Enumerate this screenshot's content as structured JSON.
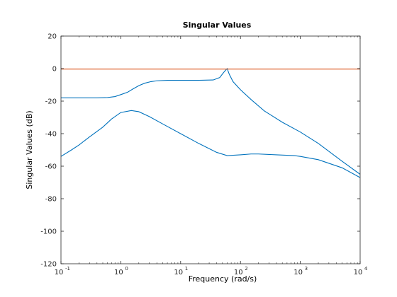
{
  "chart_data": {
    "type": "line",
    "title": "Singular Values",
    "xlabel": "Frequency (rad/s)",
    "ylabel": "Singular Values (dB)",
    "x_scale": "log",
    "xlim": [
      0.1,
      10000
    ],
    "ylim": [
      -120,
      20
    ],
    "grid": false,
    "x_ticks": [
      {
        "base": "10",
        "exp": "-1"
      },
      {
        "base": "10",
        "exp": "0"
      },
      {
        "base": "10",
        "exp": "1"
      },
      {
        "base": "10",
        "exp": "2"
      },
      {
        "base": "10",
        "exp": "3"
      },
      {
        "base": "10",
        "exp": "4"
      }
    ],
    "y_ticks": [
      "20",
      "0",
      "-20",
      "-40",
      "-60",
      "-80",
      "-100",
      "-120"
    ],
    "series": [
      {
        "color": "#0072bd",
        "x": [
          0.1,
          0.2,
          0.4,
          0.6,
          0.8,
          1.0,
          1.3,
          1.6,
          2.0,
          2.5,
          3.2,
          4,
          6,
          10,
          20,
          35,
          45,
          52,
          58,
          60,
          65,
          75,
          100,
          150,
          250,
          500,
          1000,
          2000,
          5000,
          10000
        ],
        "y": [
          -18,
          -18,
          -18,
          -17.8,
          -17.2,
          -16,
          -14.5,
          -12.5,
          -10.5,
          -9,
          -8,
          -7.5,
          -7.2,
          -7.2,
          -7.2,
          -7,
          -5.5,
          -2.5,
          -0.5,
          0,
          -3.5,
          -8,
          -13,
          -19,
          -26,
          -33,
          -39,
          -46,
          -57,
          -65
        ]
      },
      {
        "color": "#0072bd",
        "x": [
          0.1,
          0.15,
          0.2,
          0.3,
          0.5,
          0.7,
          1.0,
          1.5,
          2.0,
          3,
          5,
          10,
          20,
          40,
          60,
          100,
          150,
          200,
          400,
          800,
          1000,
          2000,
          5000,
          10000
        ],
        "y": [
          -54,
          -50,
          -47,
          -42,
          -36,
          -31,
          -27,
          -25.8,
          -26.5,
          -29.5,
          -34,
          -40,
          -46,
          -51.5,
          -53.5,
          -53,
          -52.5,
          -52.5,
          -53,
          -53.5,
          -54,
          -56,
          -61,
          -67
        ]
      },
      {
        "color": "#d95319",
        "x": [
          0.1,
          10000
        ],
        "y": [
          -0.3,
          -0.3
        ]
      }
    ]
  }
}
